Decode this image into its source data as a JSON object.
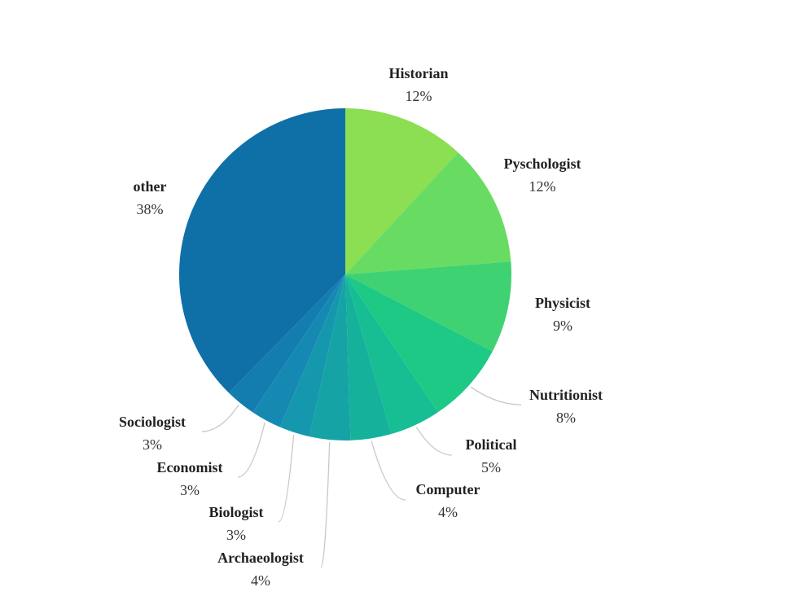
{
  "chart_data": {
    "type": "pie",
    "title": "",
    "start": "top",
    "direction": "clockwise",
    "slices": [
      {
        "label": "Historian",
        "value": 12,
        "value_label": "12%",
        "color": "#8cde52"
      },
      {
        "label": "Pyschologist",
        "value": 12,
        "value_label": "12%",
        "color": "#68dc62"
      },
      {
        "label": "Physicist",
        "value": 9,
        "value_label": "9%",
        "color": "#3fd273"
      },
      {
        "label": "Nutritionist",
        "value": 8,
        "value_label": "8%",
        "color": "#1ec985"
      },
      {
        "label": "Political",
        "value": 5,
        "value_label": "5%",
        "color": "#17bd93"
      },
      {
        "label": "Computer",
        "value": 4,
        "value_label": "4%",
        "color": "#15b19b"
      },
      {
        "label": "Archaeologist",
        "value": 4,
        "value_label": "4%",
        "color": "#15a3a6"
      },
      {
        "label": "Biologist",
        "value": 3,
        "value_label": "3%",
        "color": "#1597ae"
      },
      {
        "label": "Economist",
        "value": 3,
        "value_label": "3%",
        "color": "#1689b2"
      },
      {
        "label": "Sociologist",
        "value": 3,
        "value_label": "3%",
        "color": "#147db0"
      },
      {
        "label": "other",
        "value": 38,
        "value_label": "38%",
        "color": "#0f70a8"
      }
    ]
  }
}
